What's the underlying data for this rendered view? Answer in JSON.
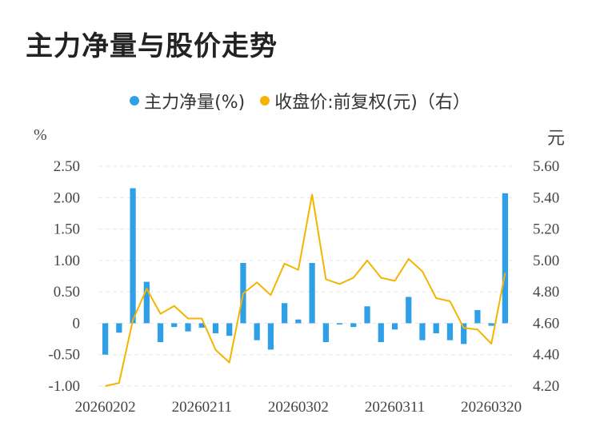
{
  "title": "主力净量与股价走势",
  "colors": {
    "bar": "#2f9fe8",
    "line": "#f5b400",
    "grid": "#e6e6e6"
  },
  "legend": [
    {
      "label": "主力净量(%)",
      "color": "#2f9fe8"
    },
    {
      "label": "收盘价:前复权(元)（右）",
      "color": "#f5b400"
    }
  ],
  "units": {
    "left": "%",
    "right": "元"
  },
  "chart_data": {
    "type": "bar+line",
    "title": "主力净量与股价走势",
    "x_ticks": [
      "20260202",
      "20260211",
      "20260302",
      "20260311",
      "20260320"
    ],
    "left_axis": {
      "ylim": [
        -1.0,
        2.5
      ],
      "ticks": [
        "-1.00",
        "-0.50",
        "0",
        "0.50",
        "1.00",
        "1.50",
        "2.00",
        "2.50"
      ],
      "tick_values": [
        -1.0,
        -0.5,
        0,
        0.5,
        1.0,
        1.5,
        2.0,
        2.5
      ]
    },
    "right_axis": {
      "ylim": [
        4.2,
        5.6
      ],
      "ticks": [
        "4.20",
        "4.40",
        "4.60",
        "4.80",
        "5.00",
        "5.20",
        "5.40",
        "5.60"
      ],
      "tick_values": [
        4.2,
        4.4,
        4.6,
        4.8,
        5.0,
        5.2,
        5.4,
        5.6
      ]
    },
    "tick_indices": [
      0,
      7,
      14,
      21,
      28
    ],
    "grid": true,
    "legend_position": "top",
    "series": [
      {
        "name": "主力净量(%)",
        "type": "bar",
        "values": [
          -0.5,
          -0.15,
          2.15,
          0.66,
          -0.3,
          -0.06,
          -0.13,
          -0.07,
          -0.16,
          -0.2,
          0.96,
          -0.27,
          -0.42,
          0.32,
          0.06,
          0.96,
          -0.3,
          -0.02,
          -0.06,
          0.27,
          -0.3,
          -0.1,
          0.42,
          -0.27,
          -0.16,
          -0.27,
          -0.33,
          0.21,
          -0.04,
          2.07
        ]
      },
      {
        "name": "收盘价:前复权(元)（右）",
        "type": "line",
        "values": [
          4.2,
          4.22,
          4.62,
          4.82,
          4.66,
          4.71,
          4.63,
          4.63,
          4.43,
          4.35,
          4.79,
          4.86,
          4.78,
          4.98,
          4.94,
          5.42,
          4.88,
          4.85,
          4.89,
          5.0,
          4.89,
          4.87,
          5.01,
          4.93,
          4.76,
          4.74,
          4.57,
          4.56,
          4.47,
          4.92
        ]
      }
    ]
  }
}
